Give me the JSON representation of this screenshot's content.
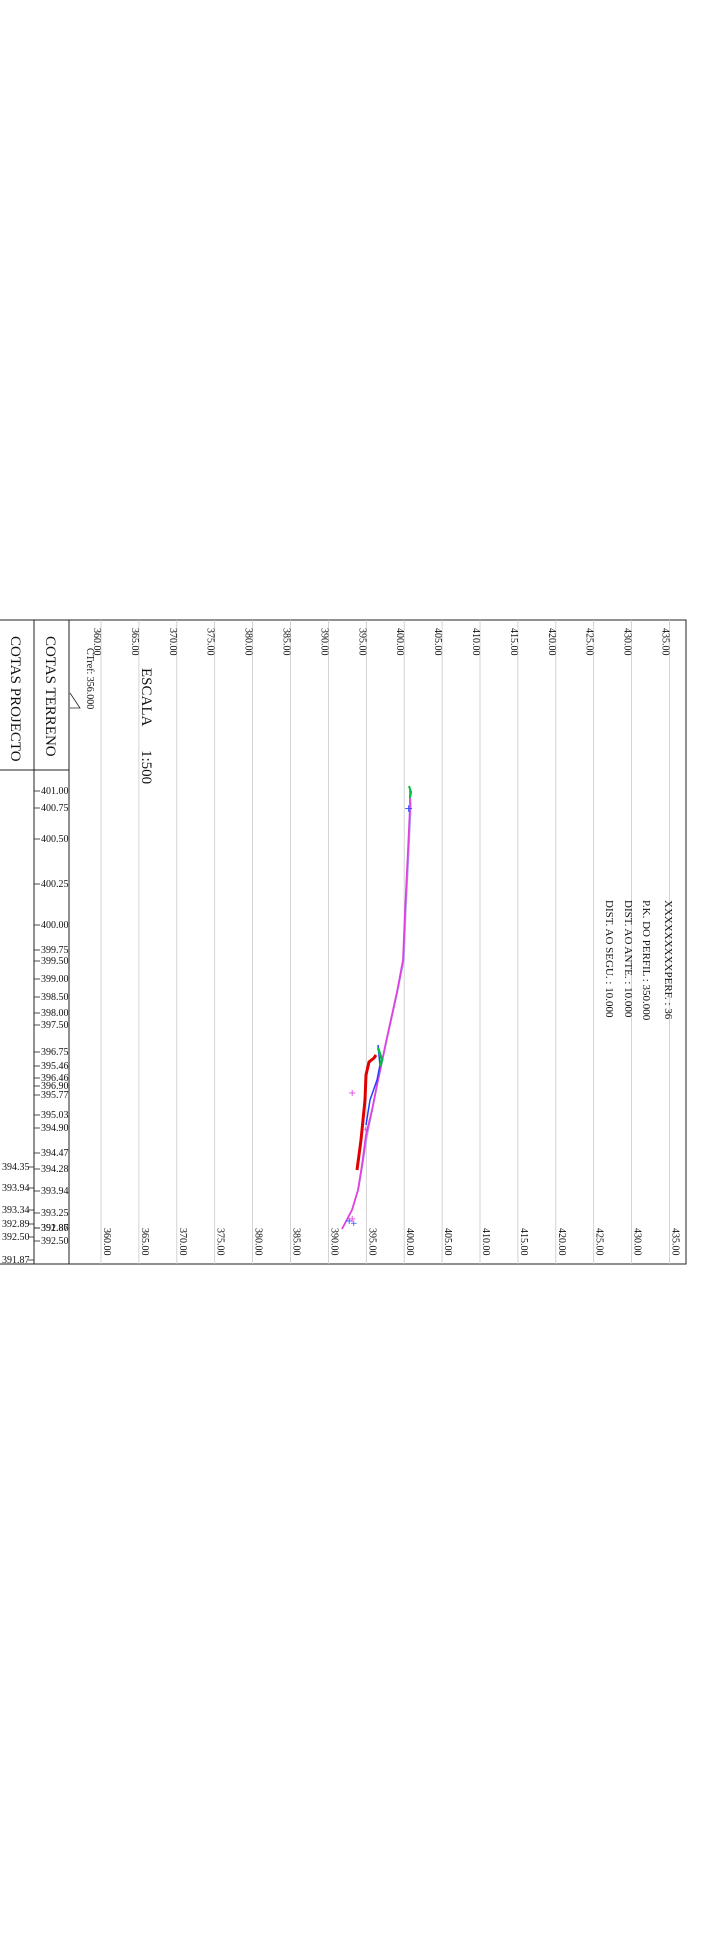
{
  "profile": {
    "header": {
      "perfil_label": "XXXXXXXXXPERF. : 36",
      "pk_label": "P.K. DO PERFIL : 350.000",
      "dist_ante_label": "DIST. AO ANTE. : 10.000",
      "dist_segu_label": "DIST. AO SEGU. : 10.000"
    },
    "escala_label": "ESCALA",
    "escala_value": "1:500",
    "cref_label": "CTref: 356.000",
    "row_cotas_terreno": "COTAS TERRENO",
    "row_cotas_projecto": "COTAS PROJECTO",
    "grid_labels": [
      "360.00",
      "365.00",
      "370.00",
      "375.00",
      "380.00",
      "385.00",
      "390.00",
      "395.00",
      "400.00",
      "405.00",
      "410.00",
      "415.00",
      "420.00",
      "425.00",
      "430.00",
      "435.00"
    ],
    "terrain_labels": [
      "401.00",
      "400.75",
      "400.50",
      "400.25",
      "400.00",
      "399.75",
      "399.50",
      "399.00",
      "398.50",
      "398.00",
      "397.50",
      "396.75",
      "395.46",
      "396.46",
      "396.90",
      "395.77",
      "395.03",
      "394.90",
      "394.47",
      "394.28",
      "393.94",
      "393.25",
      "392.86",
      "392.50",
      "391.87"
    ],
    "project_labels": [
      "394.35",
      "393.94",
      "393.34",
      "392.89",
      "392.50",
      "391.87"
    ],
    "colors": {
      "grid": "#c9c9c9",
      "terrain_line": "#e040e0",
      "terrain_line_2": "#a0a0ff",
      "project_line": "#e00000",
      "marker_green": "#00c040",
      "marker_blue": "#2040ff"
    }
  }
}
